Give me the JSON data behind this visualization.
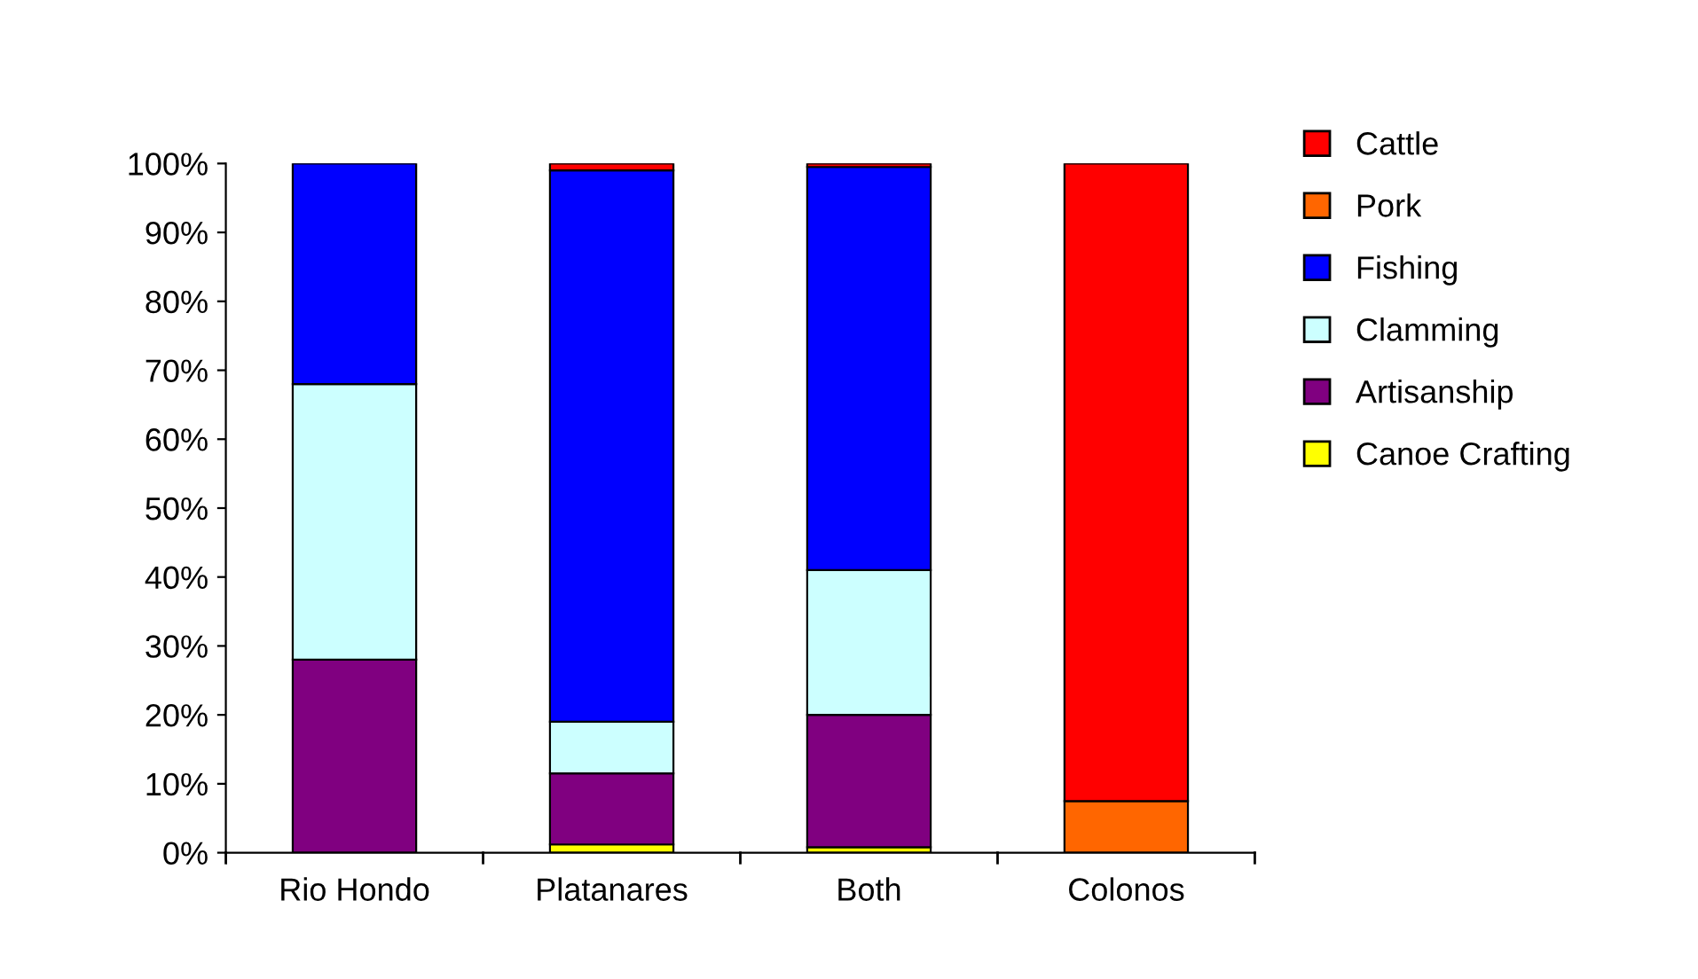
{
  "chart_data": {
    "type": "bar",
    "stacked": true,
    "categories": [
      "Rio Hondo",
      "Platanares",
      "Both",
      "Colonos"
    ],
    "series": [
      {
        "name": "Canoe Crafting",
        "color": "#ffff00",
        "values": [
          null,
          1.2,
          0.8,
          0
        ]
      },
      {
        "name": "Artisanship",
        "color": "#800080",
        "values": [
          28,
          10.3,
          19.2,
          0
        ]
      },
      {
        "name": "Clamming",
        "color": "#ccffff",
        "values": [
          40,
          7.5,
          21,
          0
        ]
      },
      {
        "name": "Fishing",
        "color": "#0000ff",
        "values": [
          32,
          80,
          58.5,
          0
        ]
      },
      {
        "name": "Pork",
        "color": "#ff6600",
        "values": [
          0,
          0,
          0,
          7.5
        ]
      },
      {
        "name": "Cattle",
        "color": "#ff0000",
        "values": [
          0,
          1,
          0.5,
          92.5
        ]
      }
    ],
    "ylim": [
      0,
      100
    ],
    "yticks": [
      {
        "value": 0,
        "label": "0%"
      },
      {
        "value": 10,
        "label": "10%"
      },
      {
        "value": 20,
        "label": "20%"
      },
      {
        "value": 30,
        "label": "30%"
      },
      {
        "value": 40,
        "label": "40%"
      },
      {
        "value": 50,
        "label": "50%"
      },
      {
        "value": 60,
        "label": "60%"
      },
      {
        "value": 70,
        "label": "70%"
      },
      {
        "value": 80,
        "label": "80%"
      },
      {
        "value": 90,
        "label": "90%"
      },
      {
        "value": 100,
        "label": "100%"
      }
    ],
    "grid": false,
    "legend": "right"
  }
}
